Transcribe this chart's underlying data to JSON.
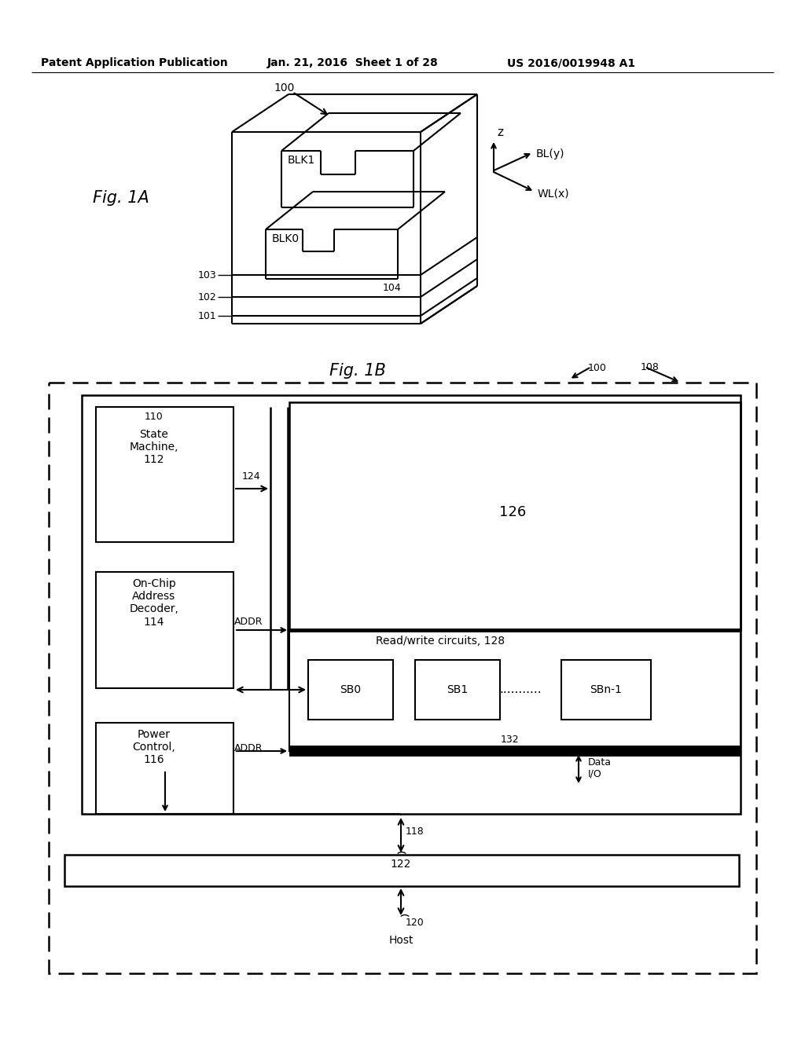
{
  "bg": "#ffffff",
  "header_left": "Patent Application Publication",
  "header_mid": "Jan. 21, 2016  Sheet 1 of 28",
  "header_right": "US 2016/0019948 A1"
}
